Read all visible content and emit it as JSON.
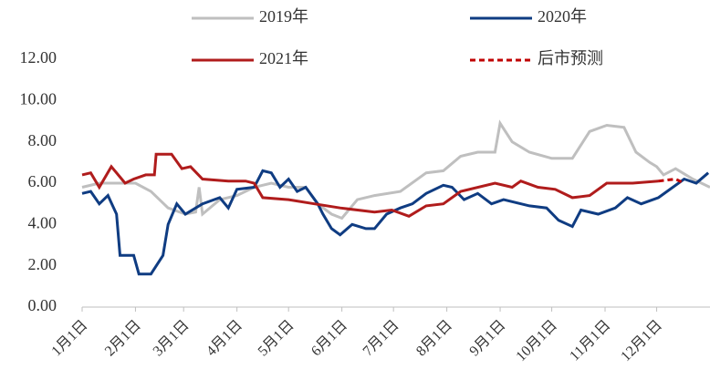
{
  "chart_data": {
    "type": "line",
    "xlim": [
      0,
      365
    ],
    "xticks": [
      {
        "value": 0,
        "label": "1月1日"
      },
      {
        "value": 31,
        "label": "2月1日"
      },
      {
        "value": 59,
        "label": "3月1日"
      },
      {
        "value": 90,
        "label": "4月1日"
      },
      {
        "value": 120,
        "label": "5月1日"
      },
      {
        "value": 151,
        "label": "6月1日"
      },
      {
        "value": 181,
        "label": "7月1日"
      },
      {
        "value": 212,
        "label": "8月1日"
      },
      {
        "value": 243,
        "label": "9月1日"
      },
      {
        "value": 273,
        "label": "10月1日"
      },
      {
        "value": 304,
        "label": "11月1日"
      },
      {
        "value": 334,
        "label": "12月1日"
      }
    ],
    "ylim": [
      0,
      12
    ],
    "yticks": [
      {
        "value": 0,
        "label": "0.00"
      },
      {
        "value": 2,
        "label": "2.00"
      },
      {
        "value": 4,
        "label": "4.00"
      },
      {
        "value": 6,
        "label": "6.00"
      },
      {
        "value": 8,
        "label": "8.00"
      },
      {
        "value": 10,
        "label": "10.00"
      },
      {
        "value": 12,
        "label": "12.00"
      }
    ],
    "series": [
      {
        "name": "2019年",
        "color": "#bfbfbf",
        "dash": false,
        "x": [
          0,
          10,
          20,
          31,
          40,
          50,
          60,
          66,
          68,
          70,
          80,
          90,
          100,
          110,
          120,
          130,
          137,
          145,
          151,
          160,
          170,
          185,
          200,
          210,
          220,
          230,
          240,
          243,
          250,
          260,
          273,
          285,
          295,
          305,
          315,
          322,
          330,
          334,
          338,
          345,
          355,
          365
        ],
        "values": [
          5.8,
          6.0,
          6.0,
          6.0,
          5.6,
          4.8,
          4.5,
          4.6,
          5.8,
          4.5,
          5.2,
          5.4,
          5.8,
          6.0,
          5.8,
          5.8,
          5.0,
          4.5,
          4.3,
          5.2,
          5.4,
          5.6,
          6.5,
          6.6,
          7.3,
          7.5,
          7.5,
          8.9,
          8.0,
          7.5,
          7.2,
          7.2,
          8.5,
          8.8,
          8.7,
          7.5,
          7.0,
          6.8,
          6.4,
          6.7,
          6.2,
          5.8
        ]
      },
      {
        "name": "2020年",
        "color": "#0f3c82",
        "dash": false,
        "x": [
          0,
          5,
          10,
          15,
          20,
          22,
          30,
          33,
          40,
          47,
          50,
          55,
          60,
          70,
          80,
          85,
          90,
          100,
          105,
          110,
          115,
          120,
          125,
          130,
          137,
          140,
          145,
          150,
          157,
          165,
          170,
          177,
          185,
          192,
          200,
          210,
          215,
          222,
          230,
          238,
          245,
          260,
          270,
          277,
          285,
          290,
          300,
          310,
          317,
          325,
          335,
          350,
          357,
          364
        ],
        "values": [
          5.5,
          5.6,
          5.0,
          5.4,
          4.5,
          2.5,
          2.5,
          1.6,
          1.6,
          2.5,
          4.0,
          5.0,
          4.5,
          5.0,
          5.3,
          4.8,
          5.7,
          5.8,
          6.6,
          6.5,
          5.8,
          6.2,
          5.6,
          5.8,
          5.0,
          4.5,
          3.8,
          3.5,
          4.0,
          3.8,
          3.8,
          4.5,
          4.8,
          5.0,
          5.5,
          5.9,
          5.8,
          5.2,
          5.5,
          5.0,
          5.2,
          4.9,
          4.8,
          4.2,
          3.9,
          4.7,
          4.5,
          4.8,
          5.3,
          5.0,
          5.3,
          6.2,
          6.0,
          6.5
        ]
      },
      {
        "name": "2021年",
        "color": "#b01c1c",
        "dash": false,
        "x": [
          0,
          5,
          10,
          17,
          25,
          30,
          37,
          42,
          43,
          52,
          58,
          63,
          70,
          85,
          95,
          100,
          105,
          120,
          135,
          150,
          170,
          180,
          190,
          200,
          210,
          220,
          240,
          250,
          255,
          265,
          275,
          285,
          295,
          305,
          320,
          335
        ],
        "values": [
          6.4,
          6.5,
          5.8,
          6.8,
          6.0,
          6.2,
          6.4,
          6.4,
          7.4,
          7.4,
          6.7,
          6.8,
          6.2,
          6.1,
          6.1,
          6.0,
          5.3,
          5.2,
          5.0,
          4.8,
          4.6,
          4.7,
          4.4,
          4.9,
          5.0,
          5.6,
          6.0,
          5.8,
          6.1,
          5.8,
          5.7,
          5.3,
          5.4,
          6.0,
          6.0,
          6.1
        ]
      },
      {
        "name": "后市预测",
        "color": "#c00000",
        "dash": true,
        "x": [
          335,
          345,
          350
        ],
        "values": [
          6.1,
          6.2,
          6.0
        ]
      }
    ]
  }
}
